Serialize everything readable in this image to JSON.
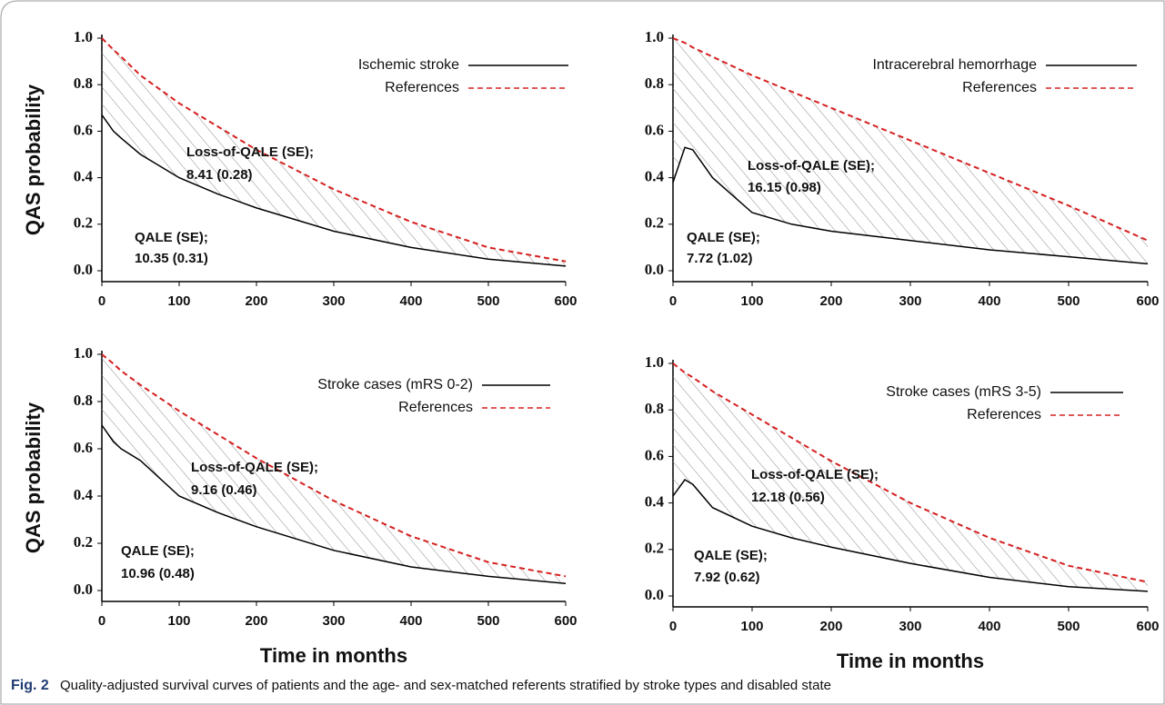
{
  "caption": {
    "label": "Fig. 2",
    "text": "Quality-adjusted survival curves of patients and the age- and sex-matched referents stratified by stroke types and disabled state"
  },
  "chart_data": [
    {
      "type": "line",
      "ylabel": "QAS probability",
      "x": [
        0,
        15,
        25,
        50,
        100,
        150,
        200,
        300,
        400,
        500,
        600
      ],
      "series": [
        {
          "name": "Ischemic stroke",
          "color": "#000000",
          "linestyle": "solid",
          "values": [
            0.67,
            0.6,
            0.57,
            0.5,
            0.4,
            0.33,
            0.27,
            0.17,
            0.1,
            0.05,
            0.02
          ]
        },
        {
          "name": "References",
          "color": "#d62020",
          "linestyle": "dashed",
          "values": [
            1.0,
            0.95,
            0.92,
            0.84,
            0.72,
            0.62,
            0.52,
            0.35,
            0.21,
            0.1,
            0.04
          ]
        }
      ],
      "annotations": [
        "Loss-of-QALE (SE);",
        "8.41 (0.28)",
        "QALE (SE);",
        "10.35 (0.31)"
      ],
      "xlim": [
        0,
        600
      ],
      "xticks": [
        0,
        100,
        200,
        300,
        400,
        500,
        600
      ],
      "ylim": [
        0,
        1
      ],
      "yticks": [
        {
          "value": 0,
          "label": "0.0"
        },
        0.2,
        0.4,
        0.6,
        0.8,
        {
          "value": 1,
          "label": "1.0"
        }
      ],
      "hatch": true
    },
    {
      "type": "line",
      "x": [
        0,
        15,
        25,
        50,
        100,
        150,
        200,
        300,
        400,
        500,
        600
      ],
      "series": [
        {
          "name": "Intracerebral hemorrhage",
          "color": "#000000",
          "linestyle": "solid",
          "values": [
            0.38,
            0.53,
            0.52,
            0.4,
            0.25,
            0.2,
            0.17,
            0.13,
            0.09,
            0.06,
            0.03
          ]
        },
        {
          "name": "References",
          "color": "#d62020",
          "linestyle": "dashed",
          "values": [
            1.0,
            0.98,
            0.96,
            0.92,
            0.84,
            0.77,
            0.7,
            0.56,
            0.42,
            0.28,
            0.13
          ]
        }
      ],
      "annotations": [
        "Loss-of-QALE (SE);",
        "16.15 (0.98)",
        "QALE (SE);",
        "7.72 (1.02)"
      ],
      "xlim": [
        0,
        600
      ],
      "xticks": [
        0,
        100,
        200,
        300,
        400,
        500,
        600
      ],
      "ylim": [
        0,
        1
      ],
      "yticks": [
        {
          "value": 0,
          "label": "0.0"
        },
        0.2,
        0.4,
        0.6,
        0.8,
        {
          "value": 1,
          "label": "1.0"
        }
      ],
      "hatch": true
    },
    {
      "type": "line",
      "ylabel": "QAS probability",
      "xlabel": "Time in months",
      "x": [
        0,
        15,
        25,
        50,
        100,
        150,
        200,
        300,
        400,
        500,
        600
      ],
      "series": [
        {
          "name": "Stroke cases (mRS 0-2)",
          "color": "#000000",
          "linestyle": "solid",
          "values": [
            0.7,
            0.63,
            0.6,
            0.55,
            0.4,
            0.33,
            0.27,
            0.17,
            0.1,
            0.06,
            0.03
          ]
        },
        {
          "name": "References",
          "color": "#d62020",
          "linestyle": "dashed",
          "values": [
            1.0,
            0.96,
            0.93,
            0.87,
            0.76,
            0.66,
            0.56,
            0.38,
            0.23,
            0.12,
            0.06
          ]
        }
      ],
      "annotations": [
        "Loss-of-QALE (SE);",
        "9.16 (0.46)",
        "QALE (SE);",
        "10.96 (0.48)"
      ],
      "xlim": [
        0,
        600
      ],
      "xticks": [
        0,
        100,
        200,
        300,
        400,
        500,
        600
      ],
      "ylim": [
        0,
        1
      ],
      "yticks": [
        {
          "value": 0,
          "label": "0.0"
        },
        0.2,
        0.4,
        0.6,
        0.8,
        {
          "value": 1,
          "label": "1.0"
        }
      ],
      "hatch": true
    },
    {
      "type": "line",
      "xlabel": "Time in months",
      "x": [
        0,
        15,
        25,
        50,
        100,
        150,
        200,
        300,
        400,
        500,
        600
      ],
      "series": [
        {
          "name": "Stroke cases (mRS 3-5)",
          "color": "#000000",
          "linestyle": "solid",
          "values": [
            0.43,
            0.5,
            0.48,
            0.38,
            0.3,
            0.25,
            0.21,
            0.14,
            0.08,
            0.04,
            0.02
          ]
        },
        {
          "name": "References",
          "color": "#d62020",
          "linestyle": "dashed",
          "values": [
            1.0,
            0.96,
            0.94,
            0.88,
            0.78,
            0.68,
            0.58,
            0.4,
            0.25,
            0.13,
            0.06
          ]
        }
      ],
      "annotations": [
        "Loss-of-QALE (SE);",
        "12.18 (0.56)",
        "QALE (SE);",
        "7.92 (0.62)"
      ],
      "xlim": [
        0,
        600
      ],
      "xticks": [
        0,
        100,
        200,
        300,
        400,
        500,
        600
      ],
      "ylim": [
        0,
        1
      ],
      "yticks": [
        {
          "value": 0,
          "label": "0.0"
        },
        0.2,
        0.4,
        0.6,
        0.8,
        {
          "value": 1,
          "label": "1.0"
        }
      ],
      "hatch": true
    }
  ]
}
